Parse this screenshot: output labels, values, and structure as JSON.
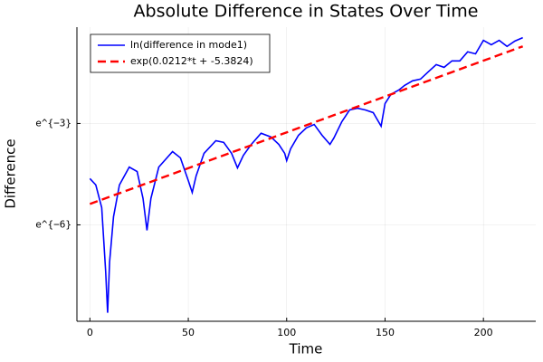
{
  "chart_data": {
    "type": "line",
    "title": "Absolute Difference in States Over Time",
    "x_label": "Time",
    "y_label": "Difference",
    "y_scale": "log",
    "log_base": "e",
    "grid": true,
    "legend_position": "top-left",
    "xlim": [
      -6.6,
      226.6
    ],
    "xticks": [
      0,
      50,
      100,
      150,
      200
    ],
    "ylim": [
      0.000143,
      0.861
    ],
    "yticks": [
      {
        "value": 0.04979,
        "label": "e^{−3}"
      },
      {
        "value": 0.002479,
        "label": "e^{−6}"
      }
    ],
    "series": [
      {
        "name": "ln(difference in mode1)",
        "color": "#0000ff",
        "dash": "solid",
        "x": [
          0,
          3,
          6,
          8,
          9,
          10,
          12,
          15,
          20,
          24,
          27,
          29,
          31,
          35,
          42,
          46,
          50,
          52,
          54,
          58,
          64,
          68,
          72,
          75,
          78,
          82,
          87,
          92,
          96,
          99,
          100,
          102,
          106,
          110,
          114,
          118,
          122,
          124,
          128,
          132,
          136,
          140,
          144,
          148,
          150,
          153,
          157,
          160,
          164,
          168,
          172,
          176,
          180,
          184,
          188,
          192,
          196,
          200,
          204,
          208,
          212,
          216,
          220
        ],
        "values": [
          0.00976,
          0.00807,
          0.00413,
          0.00063,
          0.000184,
          0.000825,
          0.00315,
          0.00807,
          0.0137,
          0.012,
          0.00541,
          0.00211,
          0.00541,
          0.0137,
          0.0217,
          0.018,
          0.00919,
          0.00647,
          0.0106,
          0.0206,
          0.0299,
          0.0284,
          0.0206,
          0.0134,
          0.0194,
          0.0268,
          0.0373,
          0.0334,
          0.0268,
          0.0206,
          0.0166,
          0.0235,
          0.0351,
          0.0437,
          0.0483,
          0.0351,
          0.0268,
          0.0324,
          0.0523,
          0.0743,
          0.0781,
          0.0743,
          0.0686,
          0.046,
          0.0898,
          0.118,
          0.134,
          0.154,
          0.176,
          0.185,
          0.23,
          0.284,
          0.262,
          0.317,
          0.317,
          0.415,
          0.391,
          0.583,
          0.512,
          0.583,
          0.487,
          0.571,
          0.631
        ]
      },
      {
        "name": "exp(0.0212*t + -5.3824)",
        "color": "#ff0000",
        "dash": "dashed",
        "x": [
          0,
          110,
          220
        ],
        "values": [
          0.0046,
          0.0473,
          0.488
        ]
      }
    ]
  }
}
